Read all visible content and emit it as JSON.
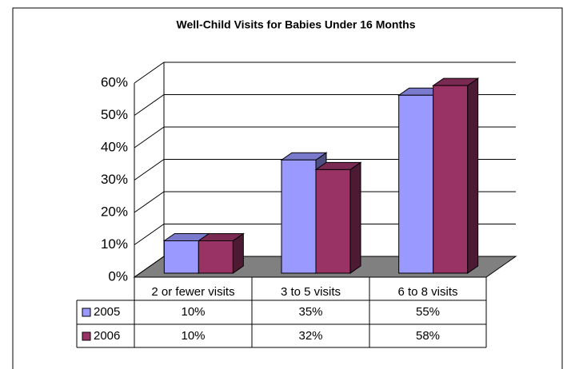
{
  "chart_data": {
    "type": "bar3d",
    "title": "Well-Child Visits for Babies Under 16 Months",
    "categories": [
      "2 or fewer visits",
      "3 to 5 visits",
      "6 to 8 visits"
    ],
    "series": [
      {
        "name": "2005",
        "color": "#9999ff",
        "values": [
          10,
          35,
          55
        ],
        "value_labels": [
          "10%",
          "35%",
          "55%"
        ]
      },
      {
        "name": "2006",
        "color": "#993366",
        "values": [
          10,
          32,
          58
        ],
        "value_labels": [
          "10%",
          "32%",
          "58%"
        ]
      }
    ],
    "ylim": [
      0,
      60
    ],
    "yticks": [
      {
        "value": 0,
        "label": "0%"
      },
      {
        "value": 10,
        "label": "10%"
      },
      {
        "value": 20,
        "label": "20%"
      },
      {
        "value": 30,
        "label": "30%"
      },
      {
        "value": 40,
        "label": "40%"
      },
      {
        "value": 50,
        "label": "50%"
      },
      {
        "value": 60,
        "label": "60%"
      }
    ],
    "grid": true
  }
}
